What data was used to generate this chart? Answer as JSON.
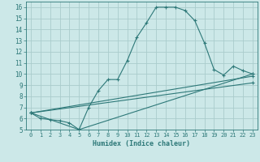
{
  "xlabel": "Humidex (Indice chaleur)",
  "bg_color": "#cce8e8",
  "grid_color": "#aacccc",
  "line_color": "#2d7878",
  "xlim": [
    -0.5,
    23.5
  ],
  "ylim": [
    5,
    16.5
  ],
  "xticks": [
    0,
    1,
    2,
    3,
    4,
    5,
    6,
    7,
    8,
    9,
    10,
    11,
    12,
    13,
    14,
    15,
    16,
    17,
    18,
    19,
    20,
    21,
    22,
    23
  ],
  "yticks": [
    5,
    6,
    7,
    8,
    9,
    10,
    11,
    12,
    13,
    14,
    15,
    16
  ],
  "line1_x": [
    0,
    1,
    2,
    3,
    4,
    5,
    6,
    7,
    8,
    9,
    10,
    11,
    12,
    13,
    14,
    15,
    16,
    17,
    18,
    19,
    20,
    21,
    22,
    23
  ],
  "line1_y": [
    6.5,
    6.0,
    5.9,
    5.8,
    5.6,
    5.0,
    7.0,
    8.5,
    9.5,
    9.5,
    11.2,
    13.3,
    14.6,
    16.0,
    16.0,
    16.0,
    15.7,
    14.8,
    12.8,
    10.4,
    9.9,
    10.7,
    10.3,
    10.0
  ],
  "line2_x": [
    0,
    5,
    23
  ],
  "line2_y": [
    6.5,
    5.0,
    10.0
  ],
  "line3_x": [
    0,
    23
  ],
  "line3_y": [
    6.5,
    9.8
  ],
  "line4_x": [
    0,
    23
  ],
  "line4_y": [
    6.5,
    9.2
  ]
}
